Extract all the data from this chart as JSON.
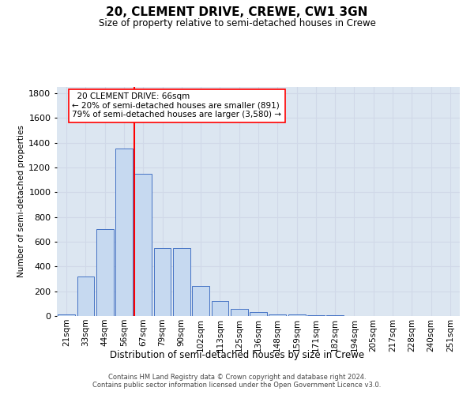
{
  "title1": "20, CLEMENT DRIVE, CREWE, CW1 3GN",
  "title2": "Size of property relative to semi-detached houses in Crewe",
  "xlabel": "Distribution of semi-detached houses by size in Crewe",
  "ylabel": "Number of semi-detached properties",
  "categories": [
    "21sqm",
    "33sqm",
    "44sqm",
    "56sqm",
    "67sqm",
    "79sqm",
    "90sqm",
    "102sqm",
    "113sqm",
    "125sqm",
    "136sqm",
    "148sqm",
    "159sqm",
    "171sqm",
    "182sqm",
    "194sqm",
    "205sqm",
    "217sqm",
    "228sqm",
    "240sqm",
    "251sqm"
  ],
  "values": [
    10,
    320,
    700,
    1350,
    1150,
    550,
    550,
    240,
    120,
    60,
    30,
    10,
    10,
    5,
    5,
    3,
    2,
    1,
    1,
    1,
    1
  ],
  "bar_color": "#c6d9f0",
  "bar_edge_color": "#4472c4",
  "vline_color": "red",
  "vline_x_index": 4,
  "ylim_max": 1850,
  "yticks": [
    0,
    200,
    400,
    600,
    800,
    1000,
    1200,
    1400,
    1600,
    1800
  ],
  "grid_color": "#d0d8e8",
  "bg_color": "#dce6f1",
  "ann_line1": "20 CLEMENT DRIVE: 66sqm",
  "ann_line2": "← 20% of semi-detached houses are smaller (891)",
  "ann_line3": "79% of semi-detached houses are larger (3,580) →",
  "footer1": "Contains HM Land Registry data © Crown copyright and database right 2024.",
  "footer2": "Contains public sector information licensed under the Open Government Licence v3.0."
}
